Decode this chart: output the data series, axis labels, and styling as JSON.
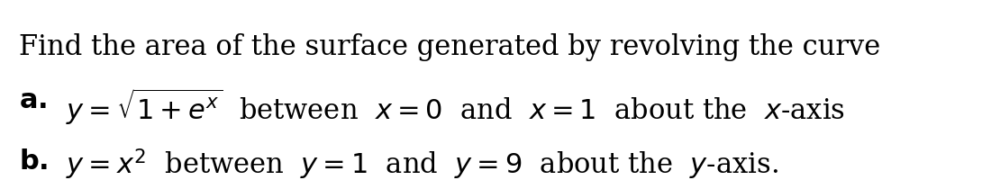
{
  "background_color": "#ffffff",
  "line1": "Find the area of the surface generated by revolving the curve",
  "line2_prefix": "\\textbf{a.}\\;",
  "line2_math": "$y = \\sqrt{1 + e^x}$ between $x = 0$ and $x = 1$ about the $x$-axis",
  "line3_prefix": "\\textbf{b.}\\;",
  "line3_math": "$y = x^2$ between $y = 1$ and $y = 9$ about the $y$-axis.",
  "text_color": "#000000",
  "fontsize_main": 22,
  "fontsize_ab": 22,
  "fig_width": 10.9,
  "fig_height": 2.1,
  "dpi": 100
}
